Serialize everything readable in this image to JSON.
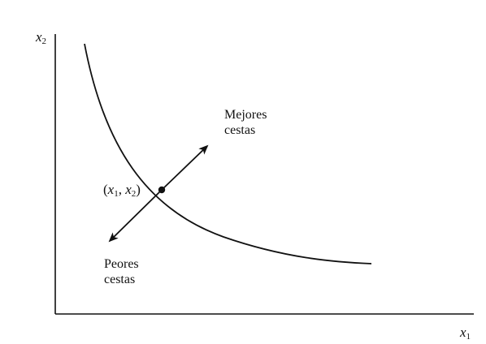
{
  "axes": {
    "y_label": {
      "var": "x",
      "sub": "2"
    },
    "x_label": {
      "var": "x",
      "sub": "1"
    }
  },
  "point": {
    "open": "(",
    "var1": "x",
    "sub1": "1",
    "comma": ", ",
    "var2": "x",
    "sub2": "2",
    "close": ")"
  },
  "better": {
    "line1": "Mejores",
    "line2": "cestas"
  },
  "worse": {
    "line1": "Peores",
    "line2": "cestas"
  },
  "colors": {
    "ink": "#111111",
    "background": "#ffffff"
  }
}
